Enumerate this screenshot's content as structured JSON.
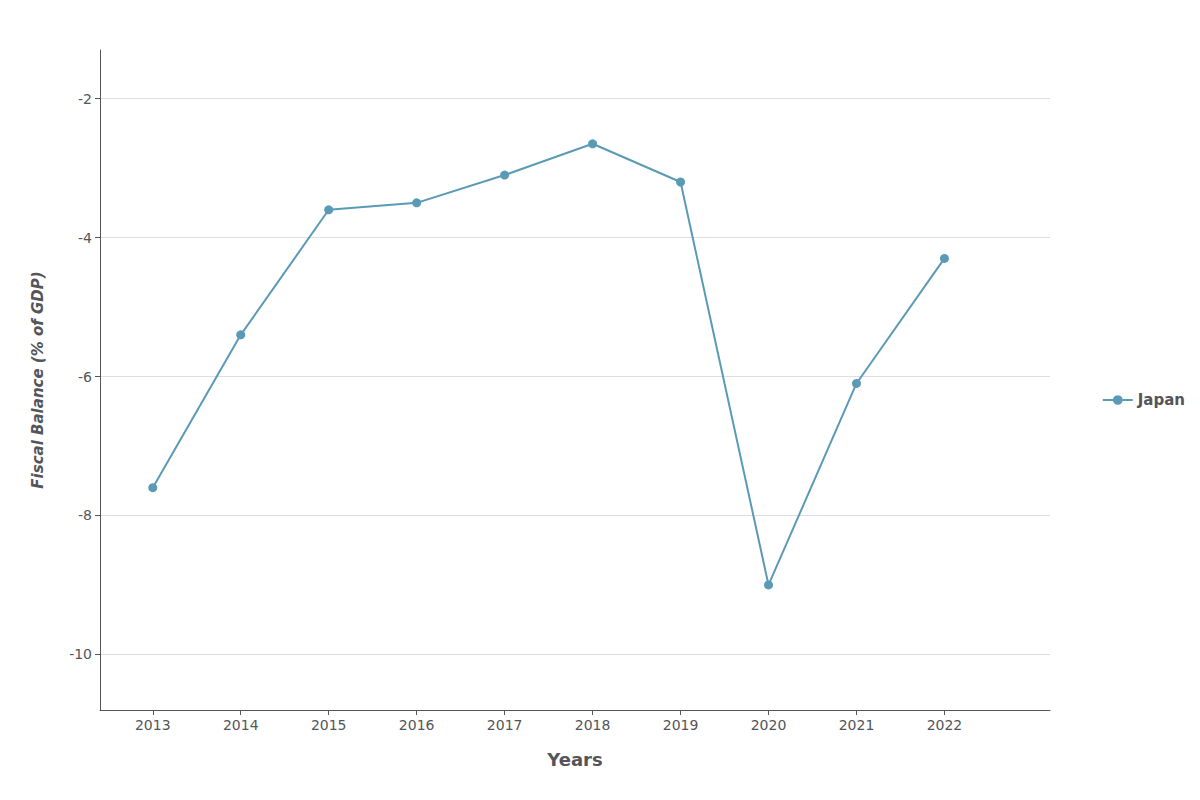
{
  "chart_data": {
    "type": "line",
    "x_label": "Years",
    "y_label": "Fiscal Balance (% of GDP)",
    "x": [
      2013,
      2014,
      2015,
      2016,
      2017,
      2018,
      2019,
      2020,
      2021,
      2022
    ],
    "series": [
      {
        "name": "Japan",
        "color": "#5b9ab5",
        "marker": "circle",
        "values": [
          -7.6,
          -5.4,
          -3.6,
          -3.5,
          -3.1,
          -2.65,
          -3.2,
          -9.0,
          -6.1,
          -4.3
        ]
      }
    ],
    "xlim": [
      2012.4,
      2023.2
    ],
    "xticks": [
      2013,
      2014,
      2015,
      2016,
      2017,
      2018,
      2019,
      2020,
      2021,
      2022
    ],
    "ylim": [
      -10.8,
      -1.3
    ],
    "yticks": [
      -10,
      -8,
      -6,
      -4,
      -2
    ],
    "grid": true,
    "legend": "right"
  }
}
